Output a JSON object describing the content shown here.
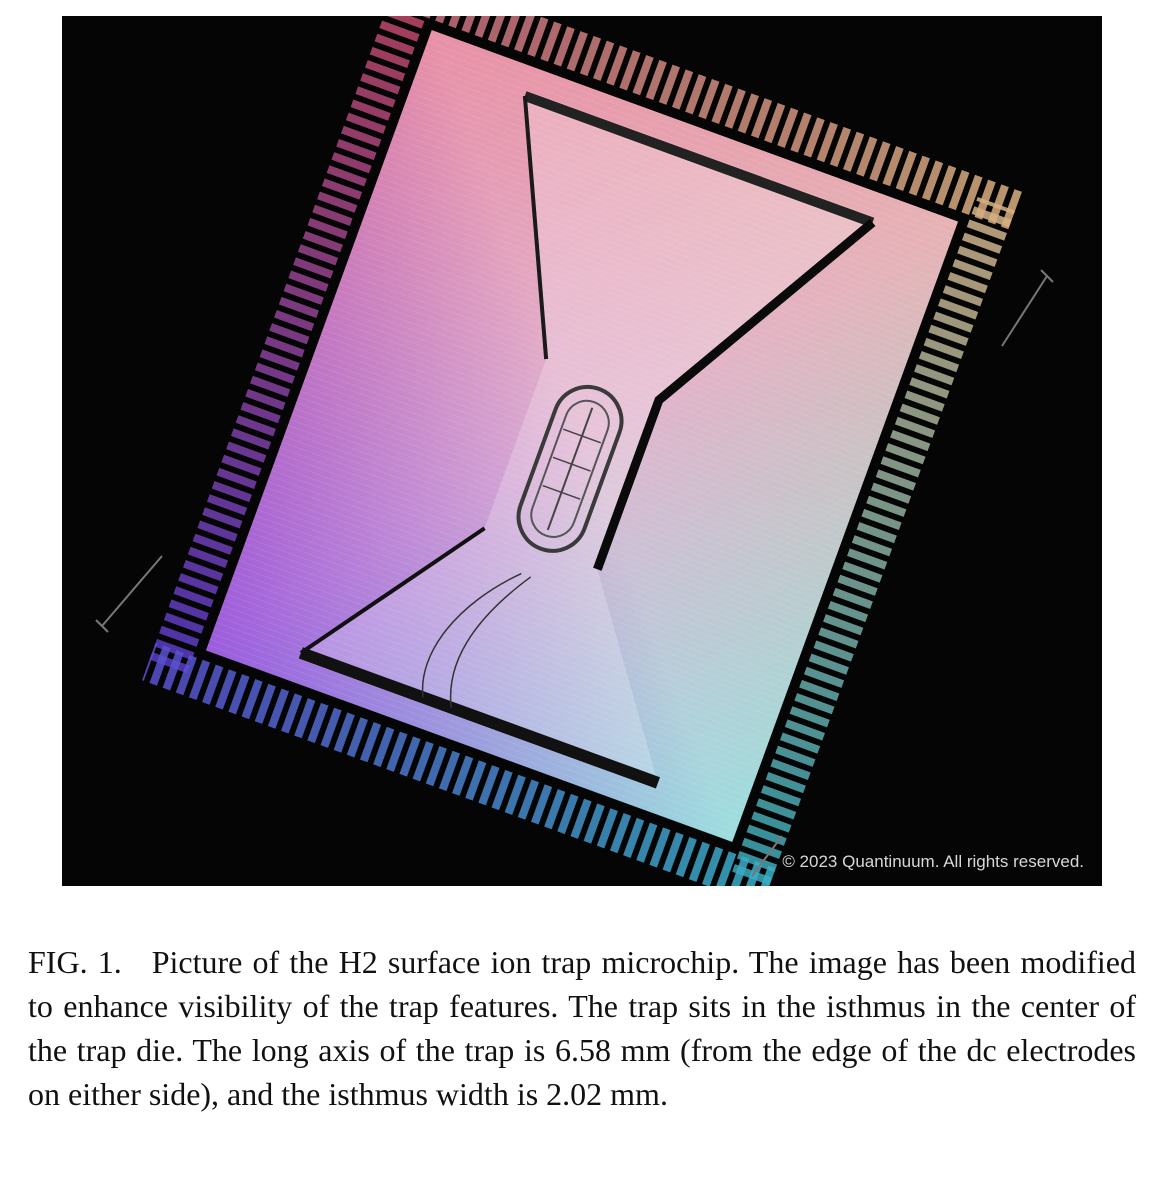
{
  "figure": {
    "copyright": "© 2023 Quantinuum. All rights reserved.",
    "colors": {
      "background": "#050505",
      "gradient_top_left": "#e8346a",
      "gradient_top_right": "#f3d9a4",
      "gradient_bottom_left": "#6a3cf0",
      "gradient_bottom_right": "#3fe0e8",
      "trap_shadow": "#0a0a0a"
    }
  },
  "caption": {
    "label": "FIG. 1.",
    "text": "Picture of the H2 surface ion trap microchip. The image has been modified to enhance visibility of the trap features. The trap sits in the isthmus in the center of the trap die. The long axis of the trap is 6.58 mm (from the edge of the dc electrodes on either side), and the isthmus width is 2.02 mm."
  }
}
